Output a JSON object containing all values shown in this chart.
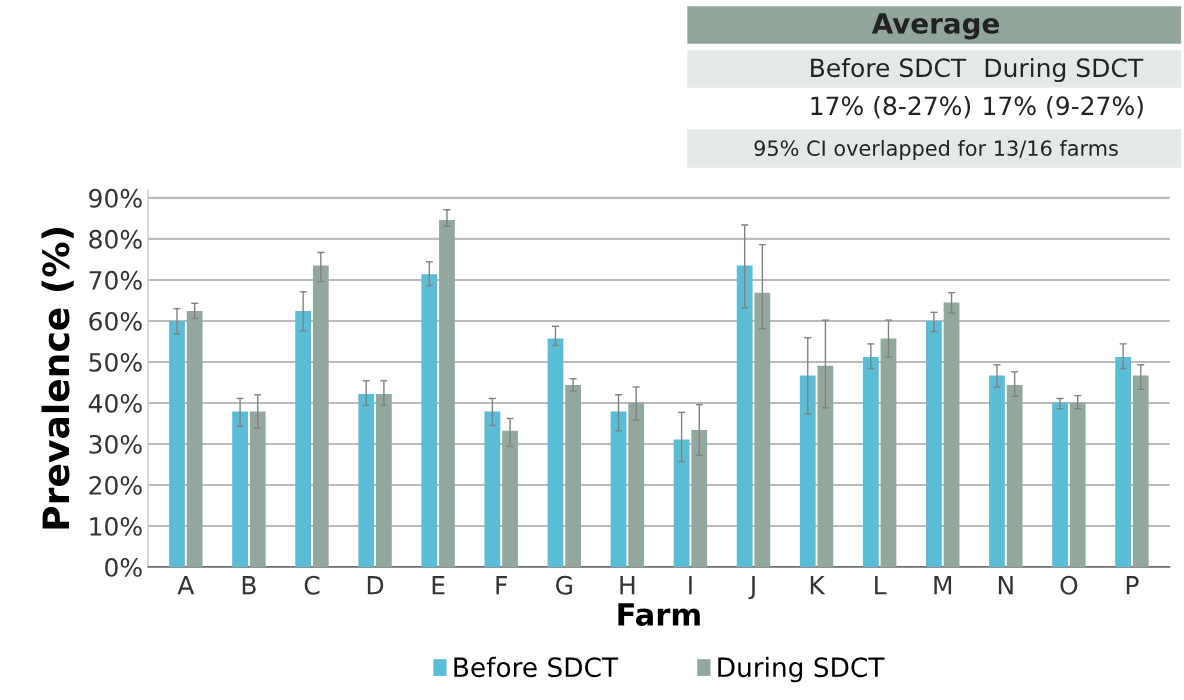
{
  "chart_data": {
    "type": "bar",
    "xlabel": "Farm",
    "ylabel": "Prevalence (%)",
    "categories": [
      "A",
      "B",
      "C",
      "D",
      "E",
      "F",
      "G",
      "H",
      "I",
      "J",
      "K",
      "L",
      "M",
      "N",
      "O",
      "P"
    ],
    "series": [
      {
        "name": "Before SDCT",
        "color": "#5bbcd6",
        "values": [
          60.0,
          37.9,
          62.4,
          42.2,
          71.4,
          37.9,
          55.7,
          37.9,
          31.1,
          73.5,
          46.7,
          51.2,
          60.0,
          46.7,
          40.1,
          51.2
        ],
        "errors": [
          [
            56.8,
            63.0
          ],
          [
            34.3,
            41.1
          ],
          [
            57.6,
            67.1
          ],
          [
            39.4,
            45.4
          ],
          [
            68.6,
            74.4
          ],
          [
            34.5,
            41.1
          ],
          [
            54.0,
            58.7
          ],
          [
            33.2,
            42.0
          ],
          [
            25.7,
            37.7
          ],
          [
            63.2,
            83.4
          ],
          [
            37.3,
            55.9
          ],
          [
            48.4,
            54.4
          ],
          [
            57.4,
            62.1
          ],
          [
            43.9,
            49.3
          ],
          [
            38.6,
            41.1
          ],
          [
            48.4,
            54.4
          ]
        ]
      },
      {
        "name": "During SDCT",
        "color": "#93a89c",
        "values": [
          62.4,
          37.9,
          73.5,
          42.2,
          84.6,
          33.2,
          44.4,
          40.1,
          33.4,
          66.9,
          49.1,
          55.7,
          64.5,
          44.4,
          40.1,
          46.7
        ],
        "errors": [
          [
            60.6,
            64.3
          ],
          [
            33.9,
            42.0
          ],
          [
            69.6,
            76.7
          ],
          [
            39.4,
            45.4
          ],
          [
            83.1,
            87.1
          ],
          [
            29.4,
            36.2
          ],
          [
            42.9,
            45.9
          ],
          [
            35.8,
            43.9
          ],
          [
            27.2,
            39.6
          ],
          [
            58.1,
            78.6
          ],
          [
            38.8,
            60.2
          ],
          [
            51.2,
            60.2
          ],
          [
            61.9,
            66.9
          ],
          [
            41.6,
            47.6
          ],
          [
            38.6,
            41.8
          ],
          [
            43.3,
            49.3
          ]
        ]
      }
    ],
    "ylim": [
      0,
      92
    ],
    "yticks": [
      {
        "value": 0,
        "label": "0%"
      },
      {
        "value": 10,
        "label": "10%"
      },
      {
        "value": 20,
        "label": "20%"
      },
      {
        "value": 30,
        "label": "30%"
      },
      {
        "value": 40,
        "label": "40%"
      },
      {
        "value": 50,
        "label": "50%"
      },
      {
        "value": 60,
        "label": "60%"
      },
      {
        "value": 70,
        "label": "70%"
      },
      {
        "value": 80,
        "label": "80%"
      },
      {
        "value": 90,
        "label": "90%"
      }
    ],
    "grid": "y",
    "legend": "bottom",
    "annotations": [
      "Average",
      "Before SDCT",
      "During SDCT",
      "17% (8-27%)",
      "17% (9-27%)",
      "95% CI overlapped for 13/16 farms"
    ]
  }
}
